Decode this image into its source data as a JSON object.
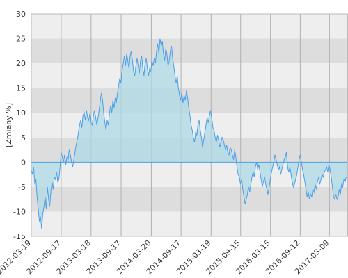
{
  "chart_data": {
    "type": "area",
    "title": "",
    "xlabel": "",
    "ylabel": "[Zmiany %]",
    "ylim": [
      -15,
      30
    ],
    "yticks": [
      -15,
      -10,
      -5,
      0,
      5,
      10,
      15,
      20,
      25,
      30
    ],
    "xlim": [
      "2012-03-19",
      "2017-06-30"
    ],
    "xticks": [
      "2012-03-19",
      "2012-09-17",
      "2013-03-18",
      "2013-09-17",
      "2014-03-20",
      "2014-09-17",
      "2015-03-19",
      "2015-09-15",
      "2016-03-15",
      "2016-09-12",
      "2017-03-09"
    ],
    "grid": {
      "horizontal_bands": true,
      "vertical_lines": true
    },
    "colors": {
      "line": "#4a9fe8",
      "fill": "#add8e6",
      "band_light": "#eeeeee",
      "band_dark": "#dddddd",
      "vgrid": "#b0b0b0",
      "zero_line": "#4a9fe8"
    },
    "series": [
      {
        "points": [
          [
            "2012-03-19",
            -1.5
          ],
          [
            "2012-03-26",
            -2.5
          ],
          [
            "2012-04-02",
            -1.0
          ],
          [
            "2012-04-09",
            -4.5
          ],
          [
            "2012-04-16",
            -3.5
          ],
          [
            "2012-04-23",
            -7.0
          ],
          [
            "2012-04-30",
            -9.5
          ],
          [
            "2012-05-07",
            -12.0
          ],
          [
            "2012-05-14",
            -11.0
          ],
          [
            "2012-05-21",
            -13.5
          ],
          [
            "2012-05-28",
            -10.5
          ],
          [
            "2012-06-04",
            -9.0
          ],
          [
            "2012-06-11",
            -7.0
          ],
          [
            "2012-06-18",
            -9.5
          ],
          [
            "2012-06-25",
            -5.0
          ],
          [
            "2012-07-02",
            -7.5
          ],
          [
            "2012-07-09",
            -9.0
          ],
          [
            "2012-07-16",
            -6.0
          ],
          [
            "2012-07-23",
            -4.0
          ],
          [
            "2012-07-30",
            -5.5
          ],
          [
            "2012-08-06",
            -3.0
          ],
          [
            "2012-08-13",
            -3.5
          ],
          [
            "2012-08-20",
            -2.0
          ],
          [
            "2012-08-27",
            -4.0
          ],
          [
            "2012-09-03",
            -3.5
          ],
          [
            "2012-09-10",
            -1.0
          ],
          [
            "2012-09-17",
            2.0
          ],
          [
            "2012-09-24",
            1.0
          ],
          [
            "2012-10-01",
            0.0
          ],
          [
            "2012-10-08",
            1.5
          ],
          [
            "2012-10-15",
            -0.5
          ],
          [
            "2012-10-22",
            1.0
          ],
          [
            "2012-10-29",
            0.5
          ],
          [
            "2012-11-05",
            2.5
          ],
          [
            "2012-11-12",
            1.5
          ],
          [
            "2012-11-19",
            0.0
          ],
          [
            "2012-11-26",
            -1.0
          ],
          [
            "2012-12-03",
            0.5
          ],
          [
            "2012-12-10",
            2.0
          ],
          [
            "2012-12-17",
            3.5
          ],
          [
            "2012-12-24",
            4.5
          ],
          [
            "2012-12-31",
            6.0
          ],
          [
            "2013-01-07",
            7.5
          ],
          [
            "2013-01-14",
            8.5
          ],
          [
            "2013-01-21",
            7.0
          ],
          [
            "2013-01-28",
            9.5
          ],
          [
            "2013-02-04",
            10.0
          ],
          [
            "2013-02-11",
            8.5
          ],
          [
            "2013-02-18",
            10.5
          ],
          [
            "2013-02-25",
            9.0
          ],
          [
            "2013-03-04",
            8.5
          ],
          [
            "2013-03-11",
            10.0
          ],
          [
            "2013-03-18",
            8.0
          ],
          [
            "2013-03-25",
            7.5
          ],
          [
            "2013-04-01",
            9.5
          ],
          [
            "2013-04-08",
            10.5
          ],
          [
            "2013-04-15",
            9.0
          ],
          [
            "2013-04-22",
            7.5
          ],
          [
            "2013-04-29",
            9.0
          ],
          [
            "2013-05-06",
            10.5
          ],
          [
            "2013-05-13",
            12.5
          ],
          [
            "2013-05-20",
            14.0
          ],
          [
            "2013-05-27",
            12.5
          ],
          [
            "2013-06-03",
            10.0
          ],
          [
            "2013-06-10",
            8.0
          ],
          [
            "2013-06-17",
            6.5
          ],
          [
            "2013-06-24",
            8.5
          ],
          [
            "2013-07-01",
            7.5
          ],
          [
            "2013-07-08",
            10.0
          ],
          [
            "2013-07-15",
            11.5
          ],
          [
            "2013-07-22",
            10.0
          ],
          [
            "2013-07-29",
            12.5
          ],
          [
            "2013-08-05",
            11.0
          ],
          [
            "2013-08-12",
            13.0
          ],
          [
            "2013-08-19",
            12.0
          ],
          [
            "2013-08-26",
            14.0
          ],
          [
            "2013-09-02",
            15.5
          ],
          [
            "2013-09-09",
            17.0
          ],
          [
            "2013-09-16",
            16.0
          ],
          [
            "2013-09-23",
            18.5
          ],
          [
            "2013-09-30",
            20.0
          ],
          [
            "2013-10-07",
            21.5
          ],
          [
            "2013-10-14",
            19.5
          ],
          [
            "2013-10-21",
            22.0
          ],
          [
            "2013-10-28",
            20.5
          ],
          [
            "2013-11-04",
            19.0
          ],
          [
            "2013-11-11",
            21.5
          ],
          [
            "2013-11-18",
            22.5
          ],
          [
            "2013-11-25",
            20.5
          ],
          [
            "2013-12-02",
            18.5
          ],
          [
            "2013-12-09",
            17.5
          ],
          [
            "2013-12-16",
            19.5
          ],
          [
            "2013-12-23",
            21.0
          ],
          [
            "2013-12-30",
            19.5
          ],
          [
            "2014-01-06",
            18.0
          ],
          [
            "2014-01-13",
            20.5
          ],
          [
            "2014-01-20",
            21.5
          ],
          [
            "2014-01-27",
            19.0
          ],
          [
            "2014-02-03",
            17.5
          ],
          [
            "2014-02-10",
            20.0
          ],
          [
            "2014-02-17",
            21.0
          ],
          [
            "2014-02-24",
            19.0
          ],
          [
            "2014-03-03",
            17.5
          ],
          [
            "2014-03-10",
            19.0
          ],
          [
            "2014-03-17",
            18.5
          ],
          [
            "2014-03-24",
            20.5
          ],
          [
            "2014-03-31",
            19.5
          ],
          [
            "2014-04-07",
            21.0
          ],
          [
            "2014-04-14",
            20.0
          ],
          [
            "2014-04-21",
            22.5
          ],
          [
            "2014-04-28",
            24.0
          ],
          [
            "2014-05-05",
            22.0
          ],
          [
            "2014-05-12",
            25.0
          ],
          [
            "2014-05-19",
            23.5
          ],
          [
            "2014-05-26",
            24.5
          ],
          [
            "2014-06-02",
            22.0
          ],
          [
            "2014-06-09",
            20.5
          ],
          [
            "2014-06-16",
            23.0
          ],
          [
            "2014-06-23",
            22.0
          ],
          [
            "2014-06-30",
            19.5
          ],
          [
            "2014-07-07",
            20.5
          ],
          [
            "2014-07-14",
            22.5
          ],
          [
            "2014-07-21",
            23.5
          ],
          [
            "2014-07-28",
            21.0
          ],
          [
            "2014-08-04",
            19.5
          ],
          [
            "2014-08-11",
            17.5
          ],
          [
            "2014-08-18",
            16.0
          ],
          [
            "2014-08-25",
            17.5
          ],
          [
            "2014-09-01",
            15.0
          ],
          [
            "2014-09-08",
            13.5
          ],
          [
            "2014-09-15",
            12.5
          ],
          [
            "2014-09-22",
            14.0
          ],
          [
            "2014-09-29",
            12.0
          ],
          [
            "2014-10-06",
            13.5
          ],
          [
            "2014-10-13",
            12.5
          ],
          [
            "2014-10-20",
            14.5
          ],
          [
            "2014-10-27",
            13.0
          ],
          [
            "2014-11-03",
            11.0
          ],
          [
            "2014-11-10",
            9.5
          ],
          [
            "2014-11-17",
            7.5
          ],
          [
            "2014-11-24",
            6.5
          ],
          [
            "2014-12-01",
            5.0
          ],
          [
            "2014-12-08",
            4.0
          ],
          [
            "2014-12-15",
            6.0
          ],
          [
            "2014-12-22",
            5.5
          ],
          [
            "2014-12-29",
            7.5
          ],
          [
            "2015-01-05",
            8.5
          ],
          [
            "2015-01-12",
            6.5
          ],
          [
            "2015-01-19",
            5.0
          ],
          [
            "2015-01-26",
            3.0
          ],
          [
            "2015-02-02",
            4.5
          ],
          [
            "2015-02-09",
            6.0
          ],
          [
            "2015-02-16",
            7.5
          ],
          [
            "2015-02-23",
            9.0
          ],
          [
            "2015-03-02",
            8.0
          ],
          [
            "2015-03-09",
            9.5
          ],
          [
            "2015-03-16",
            10.5
          ],
          [
            "2015-03-23",
            9.0
          ],
          [
            "2015-03-30",
            7.0
          ],
          [
            "2015-04-06",
            6.5
          ],
          [
            "2015-04-13",
            5.0
          ],
          [
            "2015-04-20",
            4.0
          ],
          [
            "2015-04-27",
            5.5
          ],
          [
            "2015-05-04",
            4.5
          ],
          [
            "2015-05-11",
            3.0
          ],
          [
            "2015-05-18",
            4.0
          ],
          [
            "2015-05-25",
            5.0
          ],
          [
            "2015-06-01",
            4.5
          ],
          [
            "2015-06-08",
            3.5
          ],
          [
            "2015-06-15",
            2.5
          ],
          [
            "2015-06-22",
            3.5
          ],
          [
            "2015-06-29",
            2.0
          ],
          [
            "2015-07-06",
            1.5
          ],
          [
            "2015-07-13",
            3.0
          ],
          [
            "2015-07-20",
            2.5
          ],
          [
            "2015-07-27",
            1.5
          ],
          [
            "2015-08-03",
            0.5
          ],
          [
            "2015-08-10",
            2.5
          ],
          [
            "2015-08-17",
            1.0
          ],
          [
            "2015-08-24",
            -1.0
          ],
          [
            "2015-08-31",
            -2.5
          ],
          [
            "2015-09-07",
            -3.0
          ],
          [
            "2015-09-14",
            -4.5
          ],
          [
            "2015-09-21",
            -3.5
          ],
          [
            "2015-09-28",
            -5.5
          ],
          [
            "2015-10-05",
            -7.0
          ],
          [
            "2015-10-12",
            -8.5
          ],
          [
            "2015-10-19",
            -7.5
          ],
          [
            "2015-10-26",
            -6.5
          ],
          [
            "2015-11-02",
            -5.0
          ],
          [
            "2015-11-09",
            -6.0
          ],
          [
            "2015-11-16",
            -4.5
          ],
          [
            "2015-11-23",
            -3.0
          ],
          [
            "2015-11-30",
            -2.0
          ],
          [
            "2015-12-07",
            -3.0
          ],
          [
            "2015-12-14",
            -1.0
          ],
          [
            "2015-12-21",
            0.0
          ],
          [
            "2015-12-28",
            -1.5
          ],
          [
            "2016-01-04",
            -0.5
          ],
          [
            "2016-01-11",
            -2.0
          ],
          [
            "2016-01-18",
            -3.5
          ],
          [
            "2016-01-25",
            -5.0
          ],
          [
            "2016-02-01",
            -4.0
          ],
          [
            "2016-02-08",
            -3.0
          ],
          [
            "2016-02-15",
            -4.5
          ],
          [
            "2016-02-22",
            -5.5
          ],
          [
            "2016-02-29",
            -6.5
          ],
          [
            "2016-03-07",
            -5.0
          ],
          [
            "2016-03-14",
            -3.5
          ],
          [
            "2016-03-21",
            -2.0
          ],
          [
            "2016-03-28",
            -1.0
          ],
          [
            "2016-04-04",
            0.0
          ],
          [
            "2016-04-11",
            1.5
          ],
          [
            "2016-04-18",
            0.5
          ],
          [
            "2016-04-25",
            -0.5
          ],
          [
            "2016-05-02",
            -1.5
          ],
          [
            "2016-05-09",
            -1.0
          ],
          [
            "2016-05-16",
            -2.5
          ],
          [
            "2016-05-23",
            -1.5
          ],
          [
            "2016-05-30",
            -0.5
          ],
          [
            "2016-06-06",
            0.5
          ],
          [
            "2016-06-13",
            1.0
          ],
          [
            "2016-06-20",
            2.0
          ],
          [
            "2016-06-27",
            -1.0
          ],
          [
            "2016-07-04",
            -2.0
          ],
          [
            "2016-07-11",
            -1.0
          ],
          [
            "2016-07-18",
            -2.5
          ],
          [
            "2016-07-25",
            -4.0
          ],
          [
            "2016-08-01",
            -5.0
          ],
          [
            "2016-08-08",
            -4.5
          ],
          [
            "2016-08-15",
            -3.5
          ],
          [
            "2016-08-22",
            -2.5
          ],
          [
            "2016-08-29",
            -1.0
          ],
          [
            "2016-09-05",
            0.5
          ],
          [
            "2016-09-12",
            1.5
          ],
          [
            "2016-09-19",
            0.0
          ],
          [
            "2016-09-26",
            -1.5
          ],
          [
            "2016-10-03",
            -2.5
          ],
          [
            "2016-10-10",
            -4.0
          ],
          [
            "2016-10-17",
            -5.5
          ],
          [
            "2016-10-24",
            -7.0
          ],
          [
            "2016-10-31",
            -6.0
          ],
          [
            "2016-11-07",
            -7.5
          ],
          [
            "2016-11-14",
            -6.5
          ],
          [
            "2016-11-21",
            -7.0
          ],
          [
            "2016-11-28",
            -5.5
          ],
          [
            "2016-12-05",
            -6.0
          ],
          [
            "2016-12-12",
            -4.5
          ],
          [
            "2016-12-19",
            -5.5
          ],
          [
            "2016-12-26",
            -4.0
          ],
          [
            "2017-01-02",
            -3.0
          ],
          [
            "2017-01-09",
            -4.5
          ],
          [
            "2017-01-16",
            -3.5
          ],
          [
            "2017-01-23",
            -2.5
          ],
          [
            "2017-01-30",
            -3.0
          ],
          [
            "2017-02-06",
            -2.0
          ],
          [
            "2017-02-13",
            -1.5
          ],
          [
            "2017-02-20",
            -1.0
          ],
          [
            "2017-02-27",
            -2.0
          ],
          [
            "2017-03-06",
            -0.5
          ],
          [
            "2017-03-13",
            -1.5
          ],
          [
            "2017-03-20",
            -3.0
          ],
          [
            "2017-03-27",
            -5.0
          ],
          [
            "2017-04-03",
            -7.0
          ],
          [
            "2017-04-10",
            -7.5
          ],
          [
            "2017-04-17",
            -6.5
          ],
          [
            "2017-04-24",
            -7.5
          ],
          [
            "2017-05-01",
            -7.0
          ],
          [
            "2017-05-08",
            -5.5
          ],
          [
            "2017-05-15",
            -6.5
          ],
          [
            "2017-05-22",
            -4.5
          ],
          [
            "2017-05-29",
            -5.0
          ],
          [
            "2017-06-05",
            -3.5
          ],
          [
            "2017-06-12",
            -4.0
          ],
          [
            "2017-06-19",
            -3.0
          ],
          [
            "2017-06-26",
            -3.0
          ]
        ]
      }
    ]
  }
}
